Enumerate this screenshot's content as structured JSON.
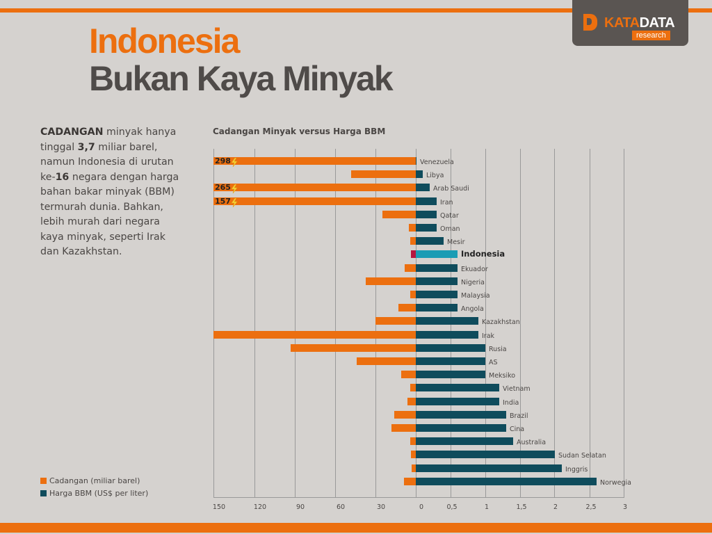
{
  "header": {
    "title_line1": "Indonesia",
    "title_line2": "Bukan Kaya Minyak",
    "logo": {
      "brand_part1": "KATA",
      "brand_part2": "DATA",
      "sub": "research"
    }
  },
  "intro": {
    "segments": [
      {
        "text": "CADANGAN",
        "bold": true
      },
      {
        "text": " minyak hanya tinggal ",
        "bold": false
      },
      {
        "text": "3,7",
        "bold": true
      },
      {
        "text": " miliar barel, namun Indonesia di urutan ke-",
        "bold": false
      },
      {
        "text": "16",
        "bold": true
      },
      {
        "text": " negara dengan harga bahan bakar minyak (BBM) termurah dunia. Bahkan, lebih murah dari negara kaya minyak, seperti Irak dan Kazakhstan.",
        "bold": false
      }
    ]
  },
  "legend": [
    {
      "label": "Cadangan (miliar barel)",
      "color": "#ec6f0f"
    },
    {
      "label": "Harga BBM (US$ per liter)",
      "color": "#0f4c5c"
    }
  ],
  "colors": {
    "accent": "#ec6f0f",
    "price_bar": "#0f4c5c",
    "indonesia_price": "#1a9cb4",
    "indonesia_reserve": "#b5173f",
    "background": "#d5d2cf"
  },
  "chart_data": {
    "type": "bar",
    "title": "Cadangan Minyak versus Harga BBM",
    "orientation": "horizontal-butterfly",
    "categories": [
      "Venezuela",
      "Libya",
      "Arab Saudi",
      "Iran",
      "Qatar",
      "Oman",
      "Mesir",
      "Indonesia",
      "Ekuador",
      "Nigeria",
      "Malaysia",
      "Angola",
      "Kazakhstan",
      "Irak",
      "Rusia",
      "AS",
      "Meksiko",
      "Vietnam",
      "India",
      "Brazil",
      "Cina",
      "Australia",
      "Sudan Selatan",
      "Inggris",
      "Norwegia"
    ],
    "series": [
      {
        "name": "Cadangan (miliar barel)",
        "side": "left",
        "values": [
          298,
          48,
          265,
          157,
          25,
          5,
          4,
          3.7,
          8,
          37,
          4,
          13,
          30,
          150,
          93,
          44,
          11,
          4,
          6,
          16,
          18,
          4,
          3.5,
          3,
          9
        ]
      },
      {
        "name": "Harga BBM (US$ per liter)",
        "side": "right",
        "values": [
          0.01,
          0.1,
          0.2,
          0.3,
          0.3,
          0.3,
          0.4,
          0.6,
          0.6,
          0.6,
          0.6,
          0.6,
          0.9,
          0.9,
          1.0,
          1.0,
          1.0,
          1.2,
          1.2,
          1.3,
          1.3,
          1.4,
          2.0,
          2.1,
          2.6
        ]
      }
    ],
    "broken_axis_labels": [
      {
        "category": "Venezuela",
        "value_label": "298"
      },
      {
        "category": "Arab Saudi",
        "value_label": "265"
      },
      {
        "category": "Iran",
        "value_label": "157"
      }
    ],
    "highlight": "Indonesia",
    "left_axis": {
      "ticks": [
        "150",
        "120",
        "90",
        "60",
        "30",
        "0"
      ],
      "range": [
        150,
        0
      ]
    },
    "right_axis": {
      "ticks": [
        "0,5",
        "1",
        "1,5",
        "2",
        "2,5",
        "3"
      ],
      "range": [
        0,
        3
      ]
    },
    "grid": true,
    "legend_position": "bottom-left"
  }
}
